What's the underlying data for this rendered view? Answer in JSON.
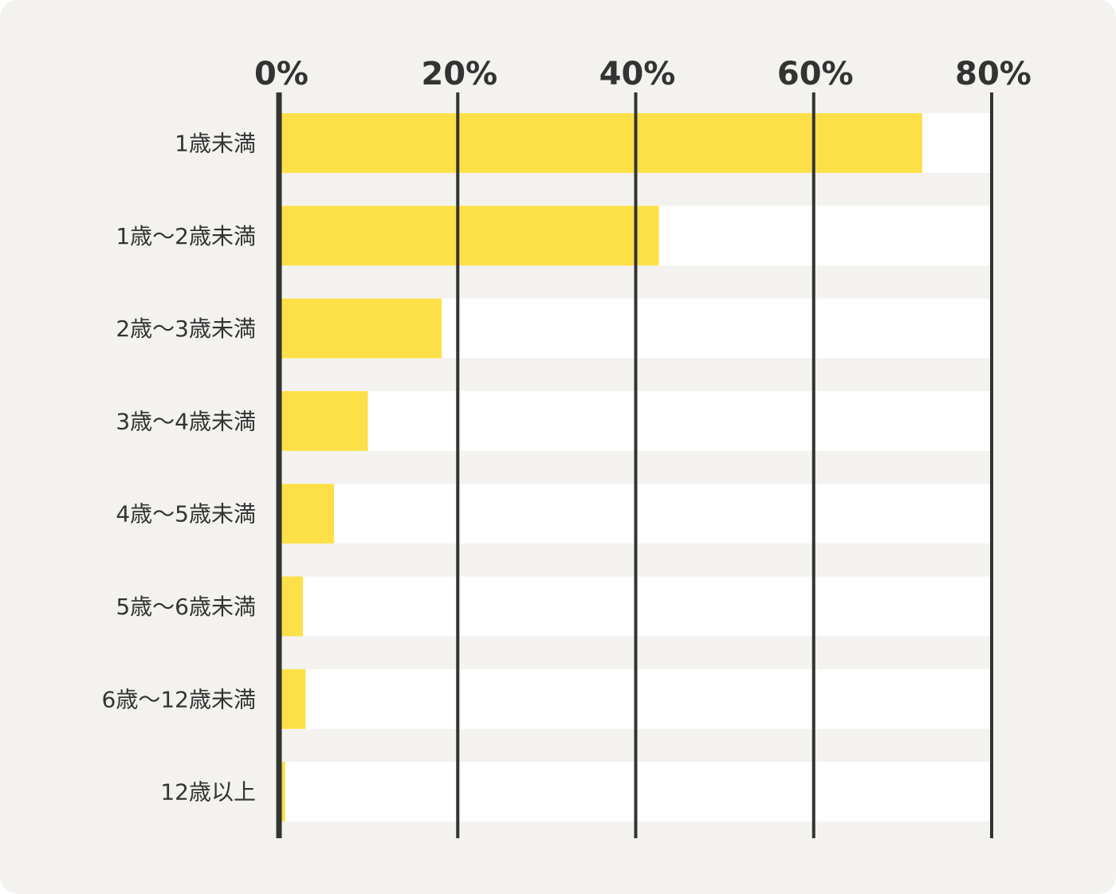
{
  "chart_data": {
    "type": "bar",
    "orientation": "horizontal",
    "title": "",
    "xlabel": "",
    "ylabel": "",
    "categories": [
      "1歳未満",
      "1歳〜2歳未満",
      "2歳〜3歳未満",
      "3歳〜4歳未満",
      "4歳〜5歳未満",
      "5歳〜6歳未満",
      "6歳〜12歳未満",
      "12歳以上"
    ],
    "values": [
      72.2,
      42.6,
      18.2,
      9.9,
      6.1,
      2.6,
      2.9,
      0.6
    ],
    "xlim": [
      0,
      80
    ],
    "ticks": [
      0,
      20,
      40,
      60,
      80
    ],
    "tick_labels": [
      "0%",
      "20%",
      "40%",
      "60%",
      "80%"
    ],
    "grid": true,
    "legend": "none",
    "colors": {
      "bar": "#fde047",
      "track": "#ffffff",
      "background": "#f3f2ef",
      "axis": "#333333",
      "text": "#333333"
    }
  }
}
